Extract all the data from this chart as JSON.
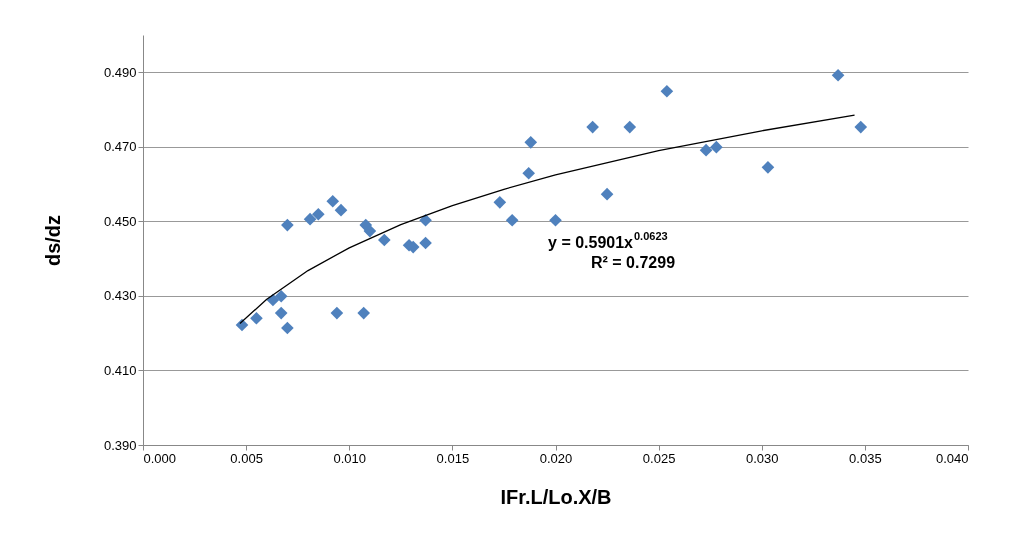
{
  "chart_data": {
    "type": "scatter",
    "xlabel": "IFr.L/Lo.X/B",
    "ylabel": "ds/dz",
    "xlim": [
      0,
      0.04
    ],
    "ylim": [
      0.39,
      0.5
    ],
    "xticks": [
      {
        "value": 0,
        "label": "0.000"
      },
      {
        "value": 0.005,
        "label": "0.005"
      },
      {
        "value": 0.01,
        "label": "0.010"
      },
      {
        "value": 0.015,
        "label": "0.015"
      },
      {
        "value": 0.02,
        "label": "0.020"
      },
      {
        "value": 0.025,
        "label": "0.025"
      },
      {
        "value": 0.03,
        "label": "0.030"
      },
      {
        "value": 0.035,
        "label": "0.035"
      },
      {
        "value": 0.04,
        "label": "0.040"
      }
    ],
    "yticks": [
      {
        "value": 0.39,
        "label": "0.390"
      },
      {
        "value": 0.41,
        "label": "0.410"
      },
      {
        "value": 0.43,
        "label": "0.430"
      },
      {
        "value": 0.45,
        "label": "0.450"
      },
      {
        "value": 0.47,
        "label": "0.470"
      },
      {
        "value": 0.49,
        "label": "0.490"
      }
    ],
    "grid": "y",
    "series": [
      {
        "marker": "diamond",
        "color": "#4f81bd",
        "x": [
          0.0048,
          0.0055,
          0.0063,
          0.0067,
          0.0067,
          0.007,
          0.007,
          0.0081,
          0.0085,
          0.0092,
          0.0096,
          0.0094,
          0.0107,
          0.0108,
          0.011,
          0.0117,
          0.0129,
          0.0131,
          0.0137,
          0.0137,
          0.0173,
          0.0179,
          0.0187,
          0.0188,
          0.02,
          0.0218,
          0.0225,
          0.0236,
          0.0254,
          0.0273,
          0.0278,
          0.0303,
          0.0337,
          0.0348
        ],
        "values": [
          0.4222,
          0.424,
          0.4289,
          0.4299,
          0.4254,
          0.4214,
          0.449,
          0.4506,
          0.4519,
          0.4554,
          0.453,
          0.4254,
          0.4254,
          0.449,
          0.4474,
          0.445,
          0.4436,
          0.4431,
          0.4442,
          0.4503,
          0.4551,
          0.4503,
          0.4629,
          0.4712,
          0.4503,
          0.4753,
          0.4573,
          0.4753,
          0.4849,
          0.4691,
          0.4699,
          0.4645,
          0.4892,
          0.4753
        ]
      },
      {
        "type": "line",
        "marker": "none",
        "color": "#000000",
        "x": [
          0.0047,
          0.006,
          0.008,
          0.01,
          0.0125,
          0.015,
          0.0175,
          0.02,
          0.025,
          0.03,
          0.0345
        ],
        "values": [
          0.4226,
          0.4291,
          0.4368,
          0.4429,
          0.4491,
          0.4542,
          0.4586,
          0.4625,
          0.469,
          0.4743,
          0.4785
        ]
      }
    ],
    "annotations": [
      "y = 0.5901x$^{0.0623}$",
      "R² = 0.7299"
    ]
  }
}
